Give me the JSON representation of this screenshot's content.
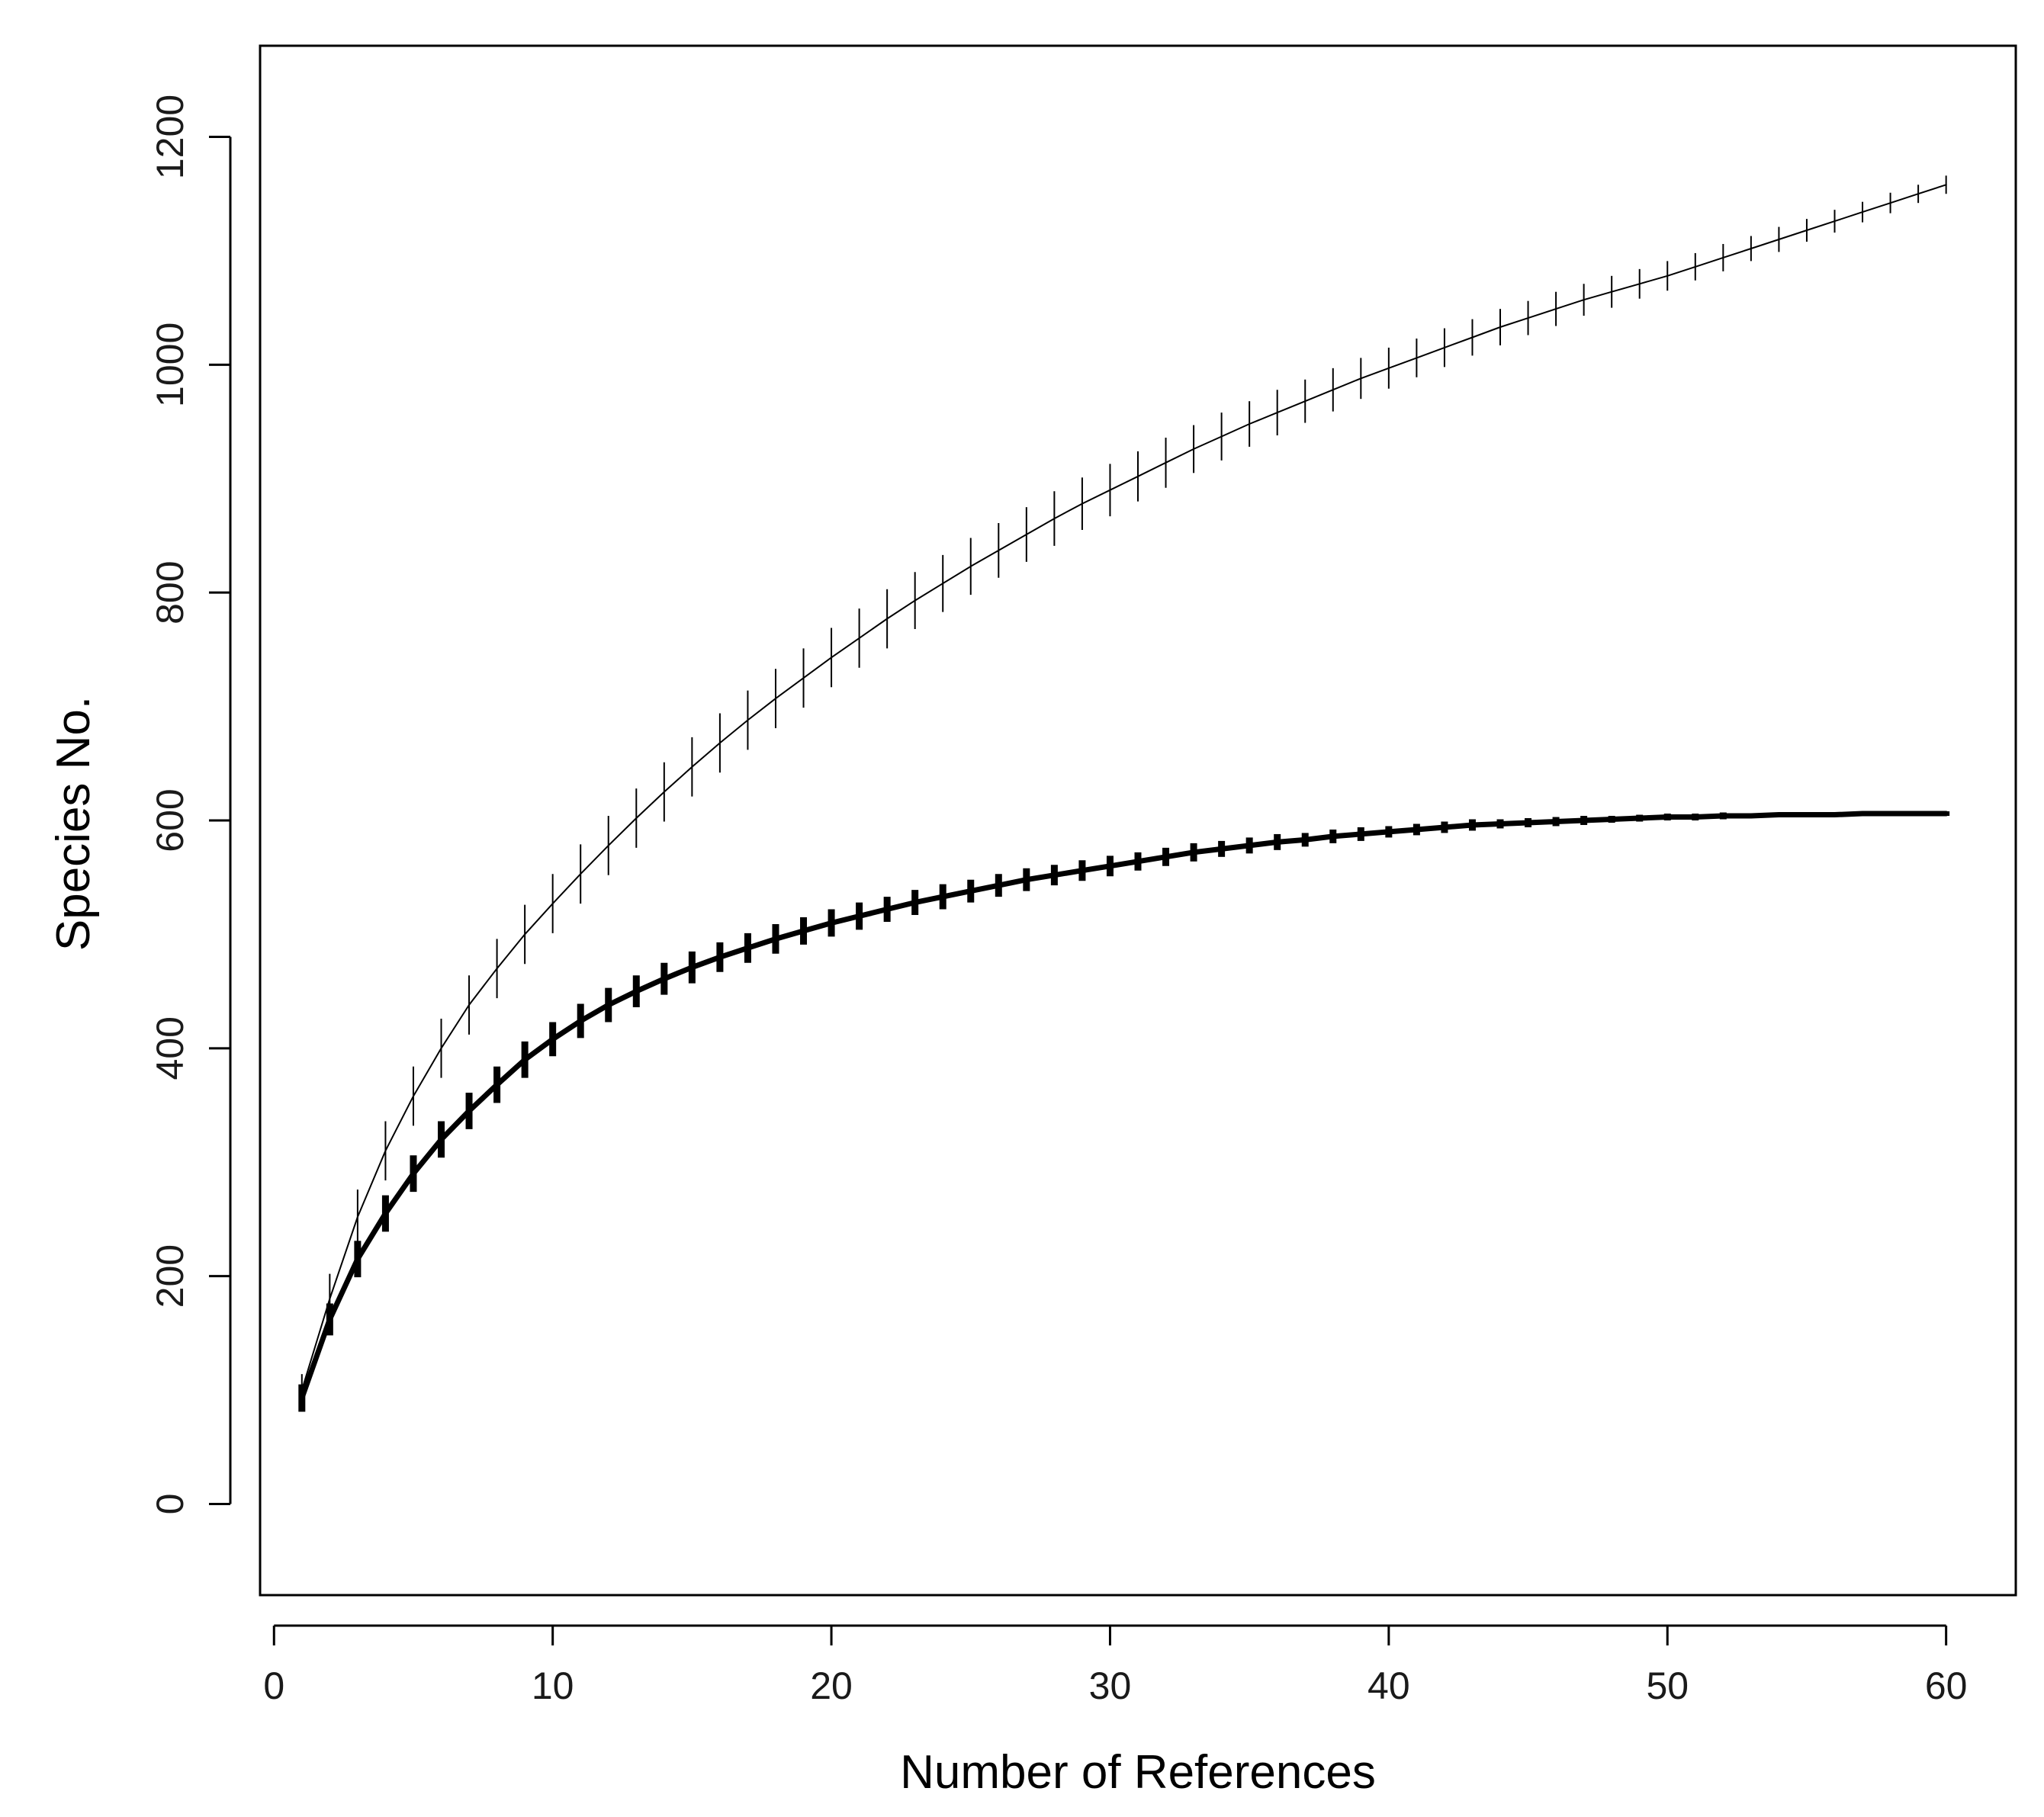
{
  "chart_data": {
    "type": "line",
    "title": "",
    "xlabel": "Number of References",
    "ylabel": "Species No.",
    "xlim": [
      -0.5,
      62.5
    ],
    "ylim": [
      -80,
      1280
    ],
    "x_ticks": [
      0,
      10,
      20,
      30,
      40,
      50,
      60
    ],
    "y_ticks": [
      0,
      200,
      400,
      600,
      800,
      1000,
      1200
    ],
    "x_tick_labels": [
      "0",
      "10",
      "20",
      "30",
      "40",
      "50",
      "60"
    ],
    "y_tick_labels": [
      "0",
      "200",
      "400",
      "600",
      "800",
      "1000",
      "1200"
    ],
    "grid": false,
    "legend": "none",
    "x": [
      1,
      2,
      3,
      4,
      5,
      6,
      7,
      8,
      9,
      10,
      11,
      12,
      13,
      14,
      15,
      16,
      17,
      18,
      19,
      20,
      21,
      22,
      23,
      24,
      25,
      26,
      27,
      28,
      29,
      30,
      31,
      32,
      33,
      34,
      35,
      36,
      37,
      38,
      39,
      40,
      41,
      42,
      43,
      44,
      45,
      46,
      47,
      48,
      49,
      50,
      51,
      52,
      53,
      54,
      55,
      56,
      57,
      58,
      59,
      60
    ],
    "series": [
      {
        "style": "thin",
        "color": "#000000",
        "values": [
          100,
          180,
          252,
          310,
          358,
          400,
          438,
          470,
          500,
          527,
          553,
          578,
          602,
          625,
          647,
          668,
          688,
          707,
          725,
          743,
          760,
          777,
          793,
          808,
          823,
          837,
          851,
          865,
          878,
          890,
          902,
          914,
          926,
          937,
          948,
          958,
          968,
          978,
          988,
          997,
          1006,
          1015,
          1024,
          1033,
          1041,
          1049,
          1057,
          1064,
          1071,
          1078,
          1086,
          1094,
          1102,
          1110,
          1118,
          1126,
          1134,
          1142,
          1150,
          1158
        ],
        "errors": [
          14,
          22,
          24,
          26,
          26,
          26,
          26,
          26,
          26,
          26,
          26,
          26,
          26,
          26,
          26,
          26,
          26,
          26,
          26,
          26,
          26,
          26,
          25,
          25,
          25,
          24,
          24,
          24,
          23,
          23,
          22,
          22,
          21,
          21,
          20,
          20,
          19,
          19,
          18,
          18,
          17,
          17,
          16,
          16,
          15,
          15,
          14,
          14,
          13,
          13,
          12,
          12,
          11,
          11,
          10,
          10,
          9,
          9,
          8,
          8
        ]
      },
      {
        "style": "thick",
        "color": "#000000",
        "values": [
          93,
          162,
          215,
          255,
          290,
          320,
          345,
          368,
          390,
          408,
          424,
          438,
          450,
          461,
          471,
          480,
          488,
          496,
          503,
          510,
          516,
          522,
          528,
          533,
          538,
          543,
          548,
          552,
          556,
          560,
          564,
          568,
          572,
          575,
          578,
          581,
          583,
          586,
          588,
          590,
          592,
          594,
          596,
          597,
          598,
          599,
          600,
          601,
          602,
          603,
          603,
          604,
          604,
          605,
          605,
          605,
          606,
          606,
          606,
          606
        ],
        "errors": [
          12,
          14,
          16,
          16,
          16,
          16,
          16,
          16,
          16,
          15,
          15,
          15,
          14,
          14,
          14,
          13,
          13,
          13,
          12,
          12,
          12,
          11,
          11,
          11,
          10,
          10,
          10,
          9,
          9,
          9,
          8,
          8,
          8,
          7,
          7,
          7,
          6,
          6,
          6,
          5,
          5,
          5,
          5,
          4,
          4,
          4,
          4,
          3,
          3,
          3,
          3,
          3,
          2,
          2,
          2,
          2,
          2,
          2,
          2,
          2
        ]
      }
    ]
  }
}
